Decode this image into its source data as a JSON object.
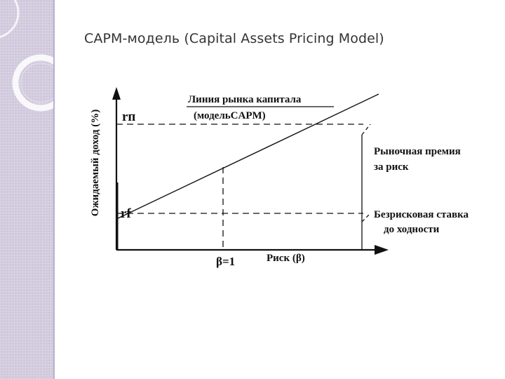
{
  "slide": {
    "title": "CAPM-модель (Capital Assets Pricing Model)"
  },
  "diagram": {
    "y_axis_label": "Ожидаемый доход (%)",
    "x_axis_label": "Риск (β)",
    "market_return_label": "rп",
    "risk_free_label": "rf",
    "beta_label": "β=1",
    "line_label_1": "Линия рынка капитала",
    "line_label_2": "(модельCAPM)",
    "market_premium_label_1": "Рыночная премия",
    "market_premium_label_2": "за риск",
    "risk_free_rate_label_1": "Безрисковая ставка",
    "risk_free_rate_label_2": "до ходности",
    "colors": {
      "line": "#111111",
      "sidebar": "#cfc8dc"
    }
  }
}
